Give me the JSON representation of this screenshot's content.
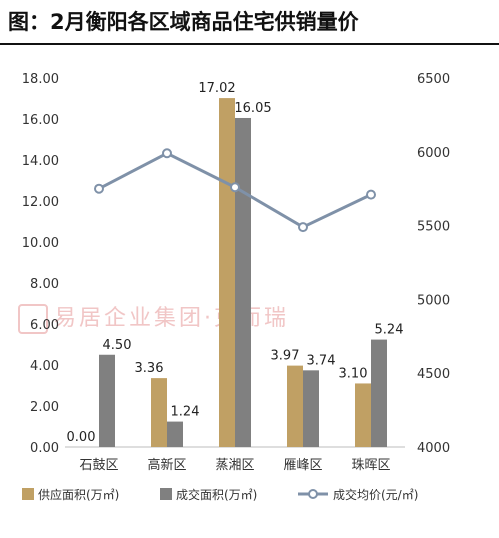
{
  "page_title": "图：2月衡阳各区域商品住宅供销量价",
  "watermark": "易居企业集团·克而瑞",
  "chart_data": {
    "type": "bar",
    "categories": [
      "石鼓区",
      "高新区",
      "蒸湘区",
      "雁峰区",
      "珠晖区"
    ],
    "series": [
      {
        "name": "供应面积(万㎡)",
        "type": "bar",
        "axis": "left",
        "color": "#c0a064",
        "values": [
          0.0,
          3.36,
          17.02,
          3.97,
          3.1
        ],
        "labels": [
          "0.00",
          "3.36",
          "17.02",
          "3.97",
          "3.10"
        ]
      },
      {
        "name": "成交面积(万㎡)",
        "type": "bar",
        "axis": "left",
        "color": "#808080",
        "values": [
          4.5,
          1.24,
          16.05,
          3.74,
          5.24
        ],
        "labels": [
          "4.50",
          "1.24",
          "16.05",
          "3.74",
          "5.24"
        ]
      },
      {
        "name": "成交均价(元/㎡)",
        "type": "line",
        "axis": "right",
        "color": "#7f91a8",
        "values": [
          5750,
          5990,
          5760,
          5490,
          5710
        ]
      }
    ],
    "ylim": [
      0,
      18
    ],
    "y_ticks": [
      "0.00",
      "2.00",
      "4.00",
      "6.00",
      "8.00",
      "10.00",
      "12.00",
      "14.00",
      "16.00",
      "18.00"
    ],
    "y2lim": [
      4000,
      6500
    ],
    "y2_ticks": [
      "4000",
      "4500",
      "5000",
      "5500",
      "6000",
      "6500"
    ],
    "legend_position": "bottom",
    "grid": false
  }
}
